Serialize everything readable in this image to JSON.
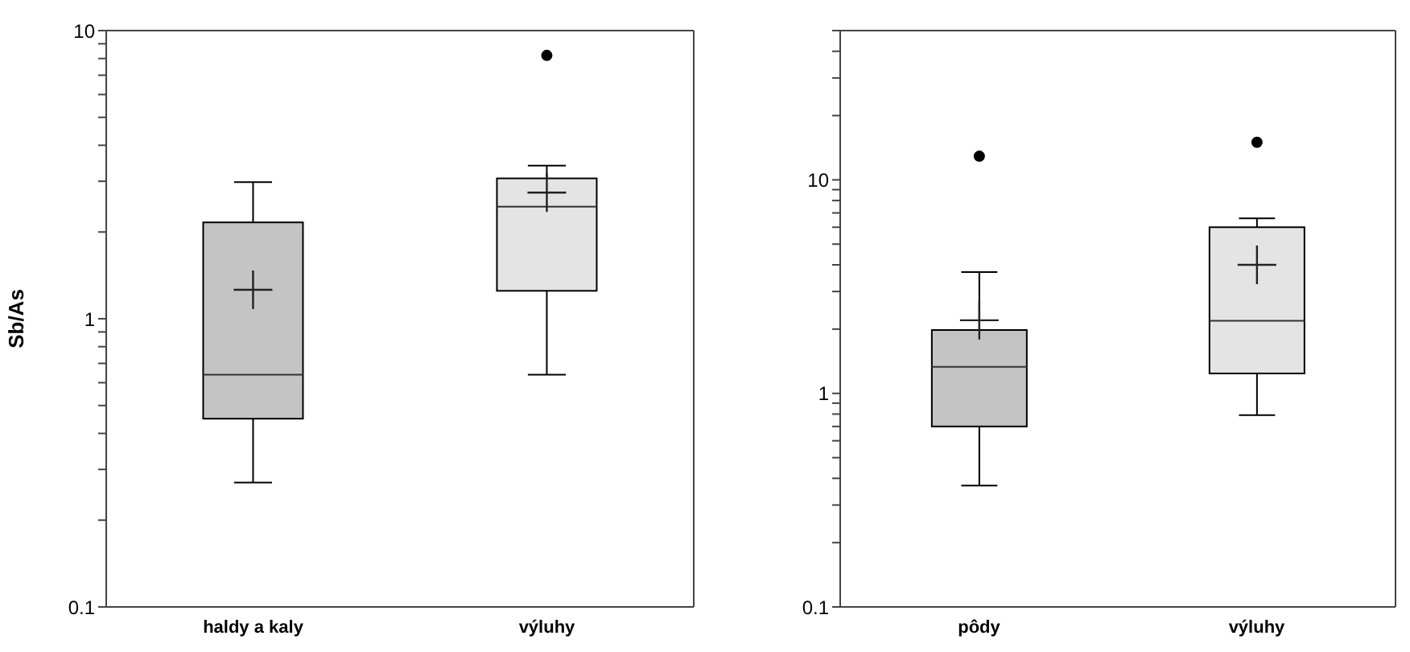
{
  "chart_data": [
    {
      "type": "box",
      "ylabel": "Sb/As",
      "log": "y",
      "categories": [
        "haldy a kaly",
        "výluhy"
      ],
      "colors": [
        "#c4c4c4",
        "#e4e4e4"
      ],
      "ylim": [
        0.1,
        10
      ],
      "yticks": [
        0.1,
        {
          "value": 0.2,
          "label": null
        },
        {
          "value": 0.3,
          "label": null
        },
        {
          "value": 0.4,
          "label": null
        },
        {
          "value": 0.5,
          "label": null
        },
        {
          "value": 0.6,
          "label": null
        },
        {
          "value": 0.7,
          "label": null
        },
        {
          "value": 0.8,
          "label": null
        },
        {
          "value": 0.9,
          "label": null
        },
        1,
        {
          "value": 2,
          "label": null
        },
        {
          "value": 3,
          "label": null
        },
        {
          "value": 4,
          "label": null
        },
        {
          "value": 5,
          "label": null
        },
        {
          "value": 6,
          "label": null
        },
        {
          "value": 7,
          "label": null
        },
        {
          "value": 8,
          "label": null
        },
        {
          "value": 9,
          "label": null
        },
        10
      ],
      "boxes": [
        {
          "low": 0.27,
          "q1": 0.45,
          "median": 0.64,
          "q3": 2.16,
          "high": 2.98,
          "mean": 1.26
        },
        {
          "low": 0.64,
          "q1": 1.25,
          "median": 2.45,
          "q3": 3.07,
          "high": 3.4,
          "mean": 2.74,
          "outliers": [
            8.2
          ]
        }
      ]
    },
    {
      "type": "box",
      "log": "y",
      "categories": [
        "pôdy",
        "výluhy"
      ],
      "colors": [
        "#c4c4c4",
        "#e4e4e4"
      ],
      "ylim": [
        0.1,
        50
      ],
      "yticks": [
        0.1,
        {
          "value": 0.2,
          "label": null
        },
        {
          "value": 0.3,
          "label": null
        },
        {
          "value": 0.4,
          "label": null
        },
        {
          "value": 0.5,
          "label": null
        },
        {
          "value": 0.6,
          "label": null
        },
        {
          "value": 0.7,
          "label": null
        },
        {
          "value": 0.8,
          "label": null
        },
        {
          "value": 0.9,
          "label": null
        },
        1,
        {
          "value": 2,
          "label": null
        },
        {
          "value": 3,
          "label": null
        },
        {
          "value": 4,
          "label": null
        },
        {
          "value": 5,
          "label": null
        },
        {
          "value": 6,
          "label": null
        },
        {
          "value": 7,
          "label": null
        },
        {
          "value": 8,
          "label": null
        },
        {
          "value": 9,
          "label": null
        },
        10,
        {
          "value": 20,
          "label": null
        },
        {
          "value": 30,
          "label": null
        },
        {
          "value": 40,
          "label": null
        },
        {
          "value": 50,
          "label": null
        }
      ],
      "boxes": [
        {
          "low": 0.37,
          "q1": 0.7,
          "median": 1.33,
          "q3": 1.98,
          "high": 3.7,
          "mean": 2.2,
          "outliers": [
            12.9
          ]
        },
        {
          "low": 0.79,
          "q1": 1.24,
          "median": 2.19,
          "q3": 6.0,
          "high": 6.6,
          "mean": 4.0,
          "outliers": [
            15
          ]
        }
      ]
    }
  ]
}
